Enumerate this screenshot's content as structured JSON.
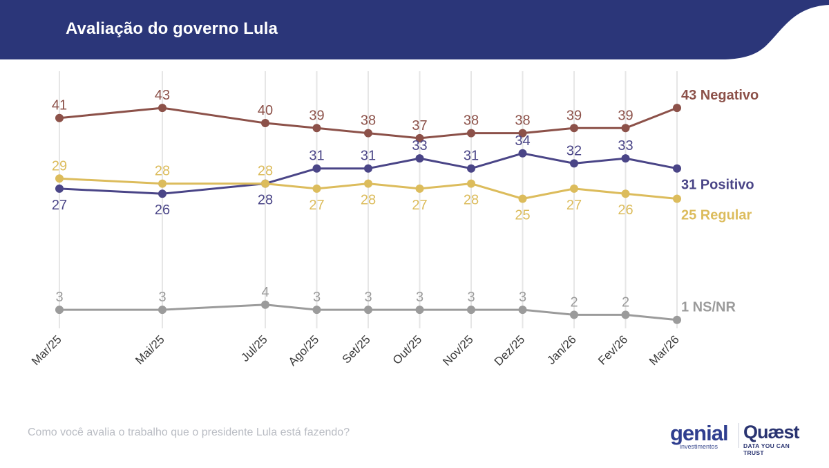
{
  "header": {
    "title": "Avaliação do governo Lula",
    "band_color": "#2b3679"
  },
  "footer": {
    "question": "Como você avalia o trabalho que o presidente Lula está fazendo?"
  },
  "logos": {
    "genial": "genial",
    "genial_sub": "investimentos",
    "quaest": "Quæst",
    "quaest_tagline": "DATA YOU CAN TRUST"
  },
  "chart_data": {
    "type": "line",
    "title": "Avaliação do governo Lula",
    "categories": [
      "Mar/25",
      "Mai/25",
      "Jul/25",
      "Ago/25",
      "Set/25",
      "Out/25",
      "Nov/25",
      "Dez/25",
      "Jan/26",
      "Fev/26",
      "Mar/26"
    ],
    "x_months": [
      0,
      2,
      4,
      5,
      6,
      7,
      8,
      9,
      10,
      11,
      12
    ],
    "ylim": [
      0,
      45
    ],
    "grid": "vertical",
    "legend": "right-end labels",
    "series": [
      {
        "name": "Negativo",
        "color": "#8c5149",
        "values": [
          41,
          43,
          40,
          39,
          38,
          37,
          38,
          38,
          39,
          39,
          43
        ],
        "end_label": "43 Negativo",
        "label_pos": "above"
      },
      {
        "name": "Positivo",
        "color": "#4a4587",
        "values": [
          27,
          26,
          28,
          31,
          31,
          33,
          31,
          34,
          32,
          33,
          31
        ],
        "end_label": "31 Positivo",
        "label_pos": "above_from_idx3"
      },
      {
        "name": "Regular",
        "color": "#dcbc5c",
        "values": [
          29,
          28,
          28,
          27,
          28,
          27,
          28,
          25,
          27,
          26,
          25
        ],
        "end_label": "25 Regular",
        "label_pos": "below_from_idx3"
      },
      {
        "name": "NS/NR",
        "color": "#9b9b9b",
        "values": [
          3,
          3,
          4,
          3,
          3,
          3,
          3,
          3,
          2,
          2,
          1
        ],
        "end_label": "1 NS/NR",
        "label_pos": "above"
      }
    ]
  }
}
